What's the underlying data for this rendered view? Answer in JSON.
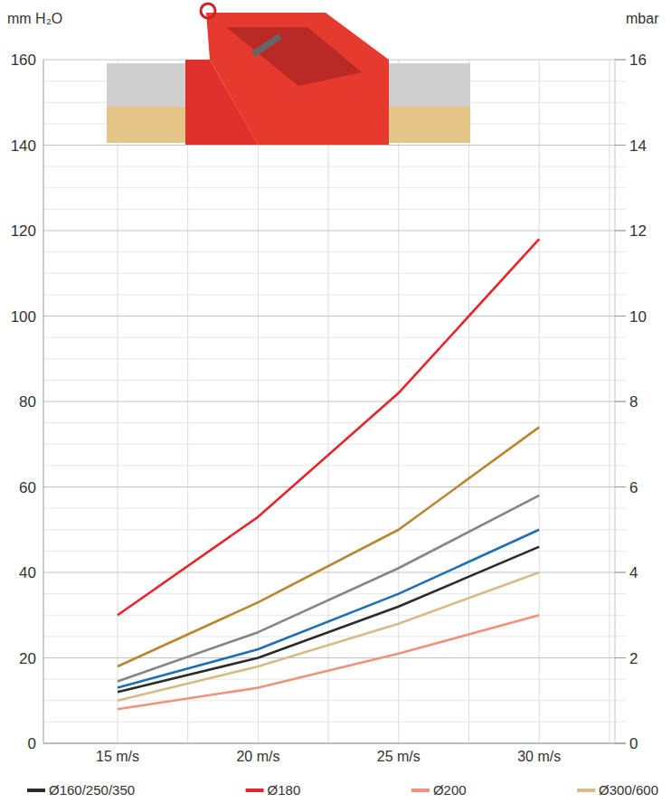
{
  "chart_data": {
    "type": "line",
    "y_label": "mm H₂O",
    "y2_label": "mbar",
    "categories": [
      "15 m/s",
      "20 m/s",
      "25 m/s",
      "30 m/s"
    ],
    "series": [
      {
        "color": "#b8862e",
        "values": [
          18,
          33,
          50,
          74
        ]
      },
      {
        "color": "#858585",
        "values": [
          14.5,
          26,
          41,
          58
        ]
      },
      {
        "color": "#1f6fb5",
        "values": [
          13,
          22,
          35,
          50
        ]
      },
      {
        "name": "Ø160/250/350",
        "color": "#2b2b2b",
        "values": [
          12,
          20,
          32,
          46
        ]
      },
      {
        "name": "Ø180",
        "color": "#e3262b",
        "values": [
          30,
          53,
          82,
          118
        ]
      },
      {
        "name": "Ø200",
        "color": "#f0917a",
        "values": [
          8,
          13,
          21,
          30
        ]
      },
      {
        "name": "Ø300/600",
        "color": "#d9b88a",
        "values": [
          10,
          18,
          28,
          40
        ]
      }
    ],
    "ylim": [
      0,
      160
    ],
    "yticks": [
      0,
      20,
      40,
      60,
      80,
      100,
      120,
      140,
      160
    ],
    "y2lim": [
      0,
      16
    ],
    "y2ticks": [
      0,
      2,
      4,
      6,
      8,
      10,
      12,
      14,
      16
    ],
    "grid": true,
    "legend": "bottom"
  }
}
